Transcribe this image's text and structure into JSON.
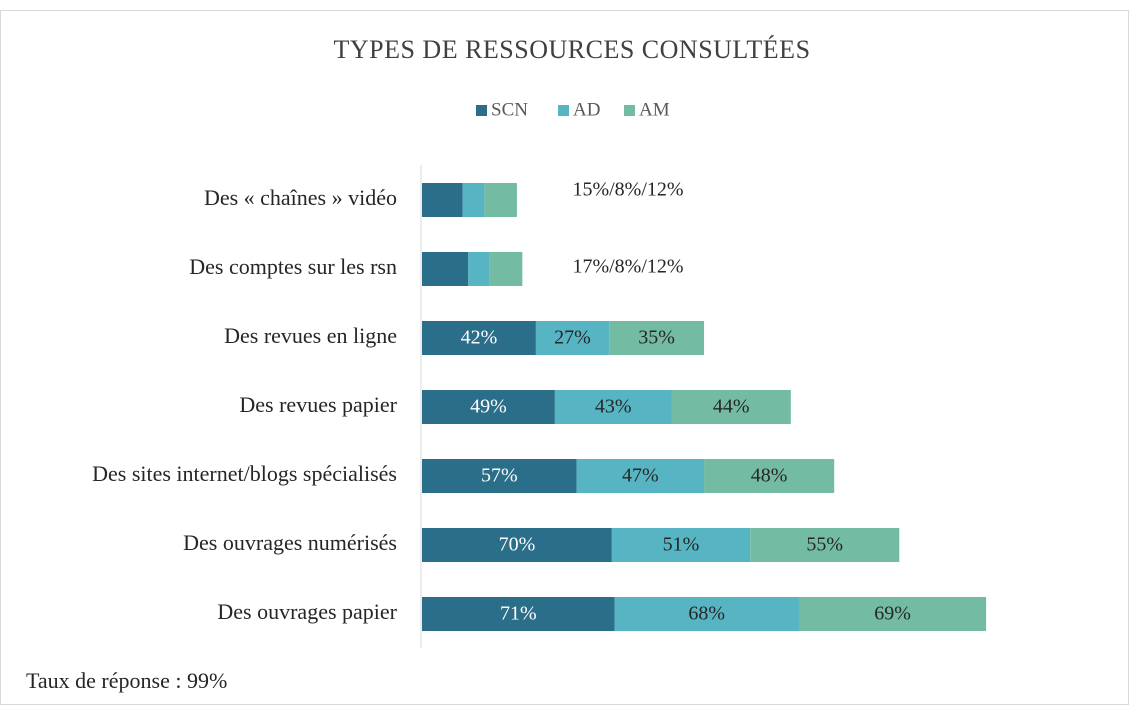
{
  "chart_data": {
    "type": "stacked-barh",
    "title": "TYPES DE RESSOURCES CONSULTÉES",
    "categories": [
      "Des « chaînes » vidéo",
      "Des comptes sur les rsn",
      "Des revues en ligne",
      "Des revues papier",
      "Des sites internet/blogs spécialisés",
      "Des ouvrages numérisés",
      "Des ouvrages papier"
    ],
    "series": [
      {
        "name": "SCN",
        "color": "#2b6e8a",
        "values": [
          15,
          17,
          42,
          49,
          57,
          70,
          71
        ],
        "value_labels": [
          null,
          null,
          "42%",
          "49%",
          "57%",
          "70%",
          "71%"
        ]
      },
      {
        "name": "AD",
        "color": "#57b4c3",
        "values": [
          8,
          8,
          27,
          43,
          47,
          51,
          68
        ],
        "value_labels": [
          null,
          null,
          "27%",
          "43%",
          "47%",
          "51%",
          "68%"
        ]
      },
      {
        "name": "AM",
        "color": "#73bca3",
        "values": [
          12,
          12,
          35,
          44,
          48,
          55,
          69
        ],
        "value_labels": [
          null,
          null,
          "35%",
          "44%",
          "48%",
          "55%",
          "69%"
        ]
      }
    ],
    "outside_labels": [
      "15%/8%/12%",
      "17%/8%/12%",
      null,
      null,
      null,
      null,
      null
    ],
    "note": "Taux de réponse : 99%"
  }
}
